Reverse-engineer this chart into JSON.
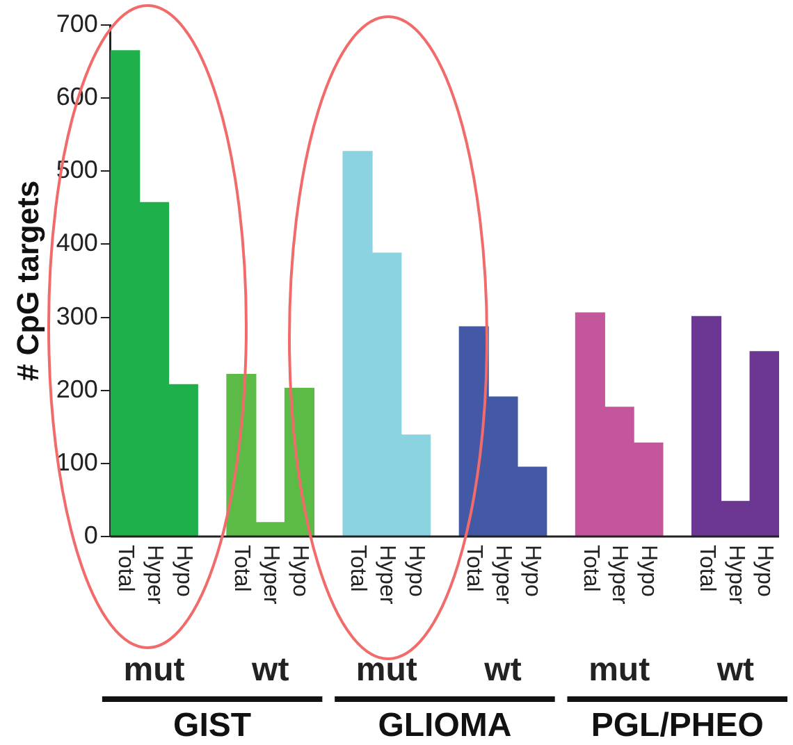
{
  "chart_data": {
    "type": "bar",
    "ylabel": "# CpG targets",
    "categories": [
      "Total",
      "Hyper",
      "Hypo",
      null,
      "Total",
      "Hyper",
      "Hypo",
      null,
      "Total",
      "Hyper",
      "Hypo",
      null,
      "Total",
      "Hyper",
      "Hypo",
      null,
      "Total",
      "Hyper",
      "Hypo",
      null,
      "Total",
      "Hyper",
      "Hypo"
    ],
    "values": [
      665,
      457,
      208,
      null,
      222,
      19,
      203,
      null,
      527,
      388,
      139,
      null,
      287,
      191,
      95,
      null,
      306,
      177,
      128,
      null,
      301,
      48,
      253
    ],
    "colors": [
      "#1fb04c",
      "#1fb04c",
      "#1fb04c",
      "#ffffff",
      "#5bbb46",
      "#5bbb46",
      "#5bbb46",
      "#ffffff",
      "#8bd3e0",
      "#8bd3e0",
      "#8bd3e0",
      "#ffffff",
      "#4359a5",
      "#4359a5",
      "#4359a5",
      "#ffffff",
      "#c4569c",
      "#c4569c",
      "#c4569c",
      "#ffffff",
      "#6c3793",
      "#6c3793",
      "#6c3793"
    ],
    "ylim": [
      0,
      700
    ],
    "yticks": [
      0,
      100,
      200,
      300,
      400,
      500,
      600,
      700
    ],
    "grid": false,
    "legend": false,
    "annotations": [
      "mut",
      "wt",
      "mut",
      "wt",
      "mut",
      "wt",
      "GIST",
      "GLIOMA",
      "PGL/PHEO"
    ]
  }
}
